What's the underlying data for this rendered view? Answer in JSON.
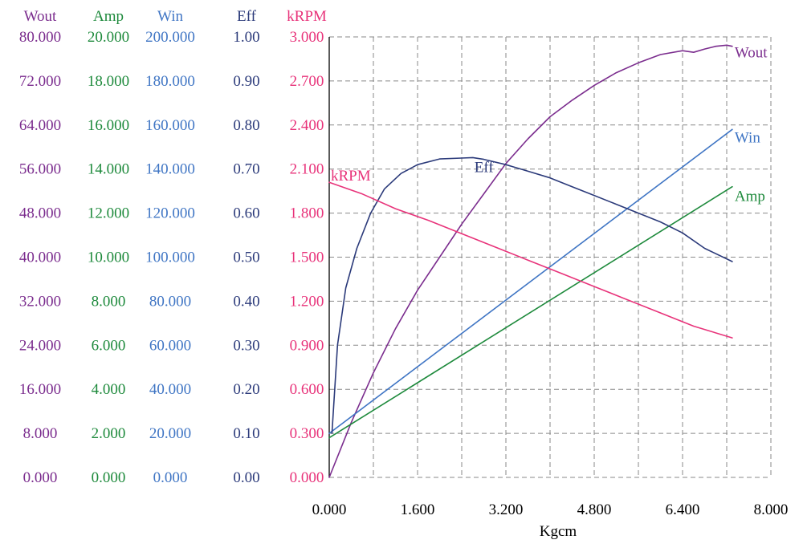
{
  "chart_data": {
    "type": "line",
    "xlabel": "Kgcm",
    "x_ticks": [
      "0.000",
      "1.600",
      "3.200",
      "4.800",
      "6.400",
      "8.000"
    ],
    "xlim": [
      0,
      8
    ],
    "grid": true,
    "axes": [
      {
        "name": "Wout",
        "color": "#7b2d8e",
        "ylim": [
          0,
          80
        ],
        "ticks": [
          "0.000",
          "8.000",
          "16.000",
          "24.000",
          "32.000",
          "40.000",
          "48.000",
          "56.000",
          "64.000",
          "72.000",
          "80.000"
        ]
      },
      {
        "name": "Amp",
        "color": "#1e8a3c",
        "ylim": [
          0,
          20
        ],
        "ticks": [
          "0.000",
          "2.000",
          "4.000",
          "6.000",
          "8.000",
          "10.000",
          "12.000",
          "14.000",
          "16.000",
          "18.000",
          "20.000"
        ]
      },
      {
        "name": "Win",
        "color": "#3f75c4",
        "ylim": [
          0,
          200
        ],
        "ticks": [
          "0.000",
          "20.000",
          "40.000",
          "60.000",
          "80.000",
          "100.000",
          "120.000",
          "140.000",
          "160.000",
          "180.000",
          "200.000"
        ]
      },
      {
        "name": "Eff",
        "color": "#2b3a7a",
        "ylim": [
          0,
          1
        ],
        "ticks": [
          "0.00",
          "0.10",
          "0.20",
          "0.30",
          "0.40",
          "0.50",
          "0.60",
          "0.70",
          "0.80",
          "0.90",
          "1.00"
        ]
      },
      {
        "name": "kRPM",
        "color": "#e8337a",
        "ylim": [
          0,
          3
        ],
        "ticks": [
          "0.000",
          "0.300",
          "0.600",
          "0.900",
          "1.200",
          "1.500",
          "1.800",
          "2.100",
          "2.400",
          "2.700",
          "3.000"
        ]
      }
    ],
    "series": [
      {
        "name": "Wout",
        "axis": 0,
        "color": "#7b2d8e",
        "x": [
          0,
          0.4,
          0.8,
          1.2,
          1.6,
          2.0,
          2.4,
          2.8,
          3.2,
          3.6,
          4.0,
          4.4,
          4.8,
          5.2,
          5.6,
          6.0,
          6.4,
          6.6,
          6.8,
          7.0,
          7.2,
          7.3
        ],
        "y": [
          0,
          10,
          19,
          27,
          34,
          40,
          46,
          51.5,
          57,
          61.5,
          65.5,
          68.5,
          71.2,
          73.5,
          75.3,
          76.8,
          77.5,
          77.2,
          77.8,
          78.3,
          78.5,
          78.3
        ]
      },
      {
        "name": "Amp",
        "axis": 1,
        "color": "#1e8a3c",
        "x": [
          0,
          7.3
        ],
        "y": [
          1.8,
          13.2
        ]
      },
      {
        "name": "Win",
        "axis": 2,
        "color": "#3f75c4",
        "x": [
          0,
          7.3
        ],
        "y": [
          20,
          158
        ]
      },
      {
        "name": "Eff",
        "axis": 3,
        "color": "#2b3a7a",
        "x": [
          0.05,
          0.15,
          0.3,
          0.5,
          0.75,
          1.0,
          1.3,
          1.6,
          2.0,
          2.4,
          2.6,
          2.8,
          3.2,
          3.6,
          4.0,
          4.4,
          4.8,
          5.2,
          5.6,
          6.0,
          6.4,
          6.8,
          7.3
        ],
        "y": [
          0.1,
          0.3,
          0.43,
          0.52,
          0.6,
          0.655,
          0.69,
          0.71,
          0.723,
          0.725,
          0.726,
          0.722,
          0.71,
          0.695,
          0.68,
          0.66,
          0.64,
          0.62,
          0.6,
          0.58,
          0.555,
          0.52,
          0.49
        ]
      },
      {
        "name": "kRPM",
        "axis": 4,
        "color": "#e8337a",
        "x": [
          0,
          0.6,
          1.2,
          1.8,
          2.4,
          3.0,
          3.6,
          4.2,
          4.8,
          5.4,
          6.0,
          6.6,
          7.3
        ],
        "y": [
          2.01,
          1.93,
          1.83,
          1.75,
          1.66,
          1.57,
          1.48,
          1.39,
          1.3,
          1.21,
          1.12,
          1.03,
          0.95
        ]
      }
    ]
  }
}
